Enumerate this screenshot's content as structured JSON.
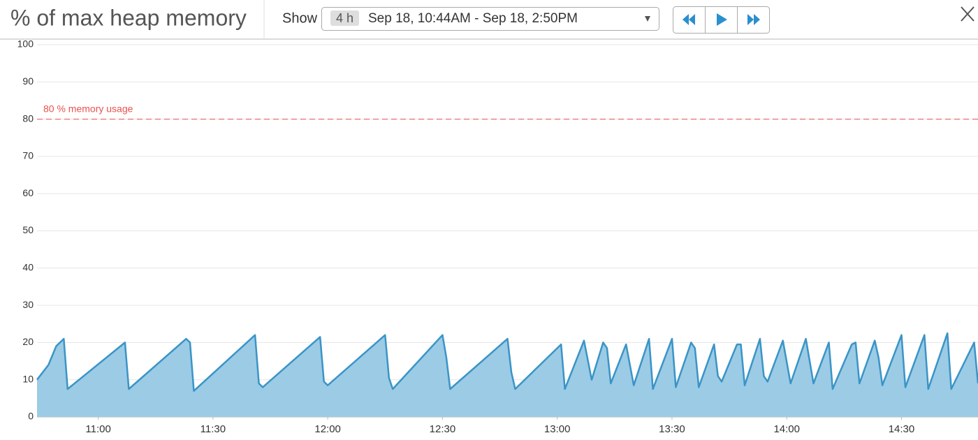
{
  "header": {
    "show_label": "Show",
    "range_badge": "4 h",
    "range_text": "Sep 18, 10:44AM - Sep 18, 2:50PM"
  },
  "chart_data": {
    "type": "area",
    "title": "% of max heap memory",
    "color": "#3a94c6",
    "fill": "#9ccbe5",
    "x": [
      "10:44",
      "10:47",
      "10:49",
      "10:51",
      "10:52",
      "11:07",
      "11:08",
      "11:23",
      "11:24",
      "11:25",
      "11:41",
      "11:42",
      "11:43",
      "11:58",
      "11:59",
      "12:00",
      "12:15",
      "12:16",
      "12:17",
      "12:30",
      "12:31",
      "12:32",
      "12:47",
      "12:48",
      "12:49",
      "13:01",
      "13:02",
      "13:07",
      "13:09",
      "13:12",
      "13:13",
      "13:14",
      "13:18",
      "13:20",
      "13:24",
      "13:25",
      "13:30",
      "13:31",
      "13:35",
      "13:36",
      "13:37",
      "13:41",
      "13:42",
      "13:43",
      "13:47",
      "13:48",
      "13:49",
      "13:53",
      "13:54",
      "13:55",
      "13:59",
      "14:01",
      "14:05",
      "14:07",
      "14:11",
      "14:12",
      "14:17",
      "14:18",
      "14:19",
      "14:23",
      "14:24",
      "14:25",
      "14:30",
      "14:31",
      "14:36",
      "14:37",
      "14:42",
      "14:43",
      "14:49",
      "14:50"
    ],
    "values": [
      10,
      14,
      19,
      21,
      7.5,
      20,
      7.5,
      21,
      20,
      7,
      22,
      9,
      8,
      21.5,
      9.5,
      8.5,
      22,
      10.5,
      7.5,
      22,
      16,
      7.5,
      21,
      12,
      7.5,
      19.5,
      7.5,
      20.5,
      10,
      20,
      18.5,
      9,
      19.5,
      8.5,
      21,
      7.5,
      21,
      8,
      20,
      18.5,
      8,
      19.5,
      11,
      9.5,
      19.5,
      19.5,
      8.5,
      21,
      11,
      9.5,
      20.5,
      9,
      21,
      9,
      20,
      7.5,
      19.5,
      20,
      9,
      20.5,
      16,
      8.5,
      22,
      8,
      22,
      7.5,
      22.5,
      7.5,
      20,
      9
    ],
    "xlim": [
      "10:44",
      "14:50"
    ],
    "xticks": [
      "11:00",
      "11:30",
      "12:00",
      "12:30",
      "13:00",
      "13:30",
      "14:00",
      "14:30"
    ],
    "ylim": [
      0,
      100
    ],
    "yticks": [
      0,
      10,
      20,
      30,
      40,
      50,
      60,
      70,
      80,
      90,
      100
    ],
    "grid": true,
    "threshold": {
      "value": 80,
      "label": "80 % memory usage",
      "color": "#e8524f"
    }
  }
}
